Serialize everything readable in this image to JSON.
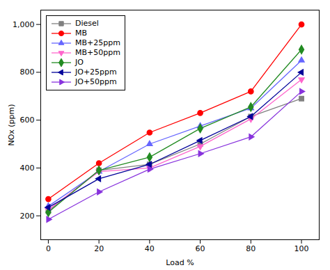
{
  "chart_data": {
    "type": "line",
    "x": [
      0,
      20,
      40,
      60,
      80,
      100
    ],
    "series": [
      {
        "name": "Diesel",
        "color": "#808080",
        "marker": "square",
        "values": [
          220,
          390,
          415,
          500,
          615,
          690
        ]
      },
      {
        "name": "MB",
        "color": "#ff0000",
        "marker": "circle",
        "values": [
          270,
          420,
          548,
          630,
          720,
          1000
        ]
      },
      {
        "name": "MB+25ppm",
        "color": "#6666ff",
        "marker": "triangle-up",
        "values": [
          240,
          385,
          500,
          575,
          650,
          850
        ]
      },
      {
        "name": "MB+50ppm",
        "color": "#ff66cc",
        "marker": "triangle-down",
        "values": [
          225,
          385,
          400,
          490,
          605,
          770
        ]
      },
      {
        "name": "JO",
        "color": "#228B22",
        "marker": "diamond",
        "values": [
          215,
          390,
          445,
          565,
          655,
          895
        ]
      },
      {
        "name": "JO+25ppm",
        "color": "#000099",
        "marker": "triangle-left",
        "values": [
          235,
          355,
          415,
          515,
          615,
          800
        ]
      },
      {
        "name": "JO+50ppm",
        "color": "#8833dd",
        "marker": "triangle-right",
        "values": [
          185,
          300,
          395,
          460,
          530,
          720
        ]
      }
    ],
    "xlabel": "Load %",
    "ylabel": "NOx (ppm)",
    "xlim": [
      -3,
      107
    ],
    "ylim": [
      100,
      1060
    ],
    "xticks": [
      0,
      20,
      40,
      60,
      80,
      100
    ],
    "yticks": [
      200,
      400,
      600,
      800,
      1000
    ],
    "legend": "upper left",
    "grid": false
  }
}
